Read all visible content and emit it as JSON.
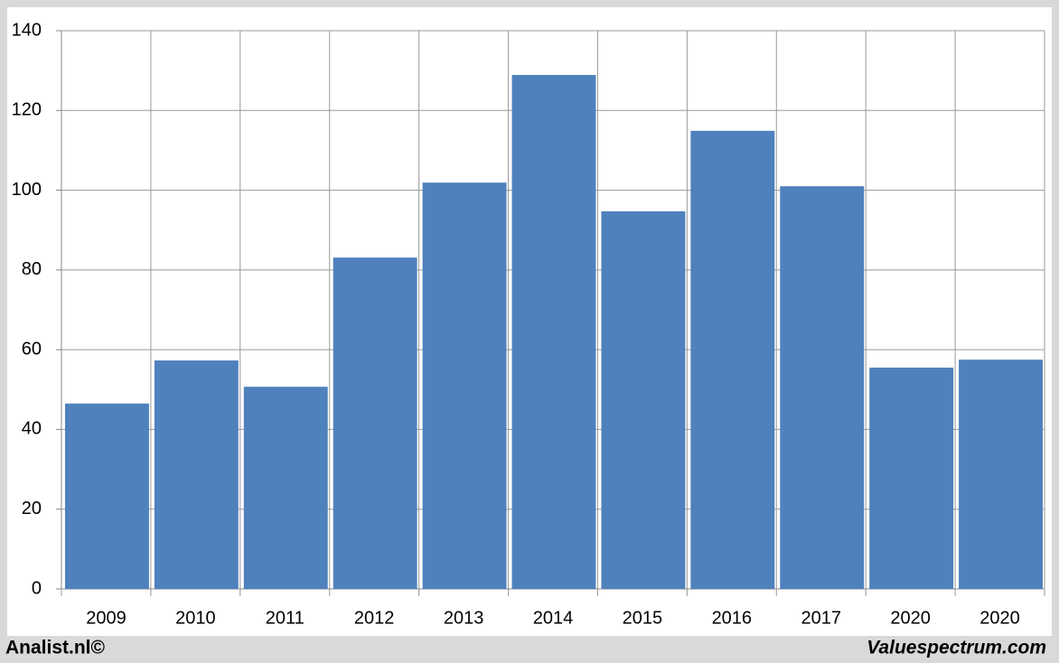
{
  "chart_data": {
    "type": "bar",
    "categories": [
      "2009",
      "2010",
      "2011",
      "2012",
      "2013",
      "2014",
      "2015",
      "2016",
      "2017",
      "2020",
      "2020"
    ],
    "values": [
      46.5,
      57.3,
      50.7,
      83.1,
      101.9,
      128.9,
      94.7,
      114.9,
      101.0,
      55.5,
      57.5
    ],
    "color": "#4f81bd",
    "ylim": [
      0,
      140
    ],
    "yticks": [
      0,
      20,
      40,
      60,
      80,
      100,
      120,
      140
    ],
    "grid": true,
    "source_left": "Analist.nl©",
    "source_right": "Valuespectrum.com"
  }
}
